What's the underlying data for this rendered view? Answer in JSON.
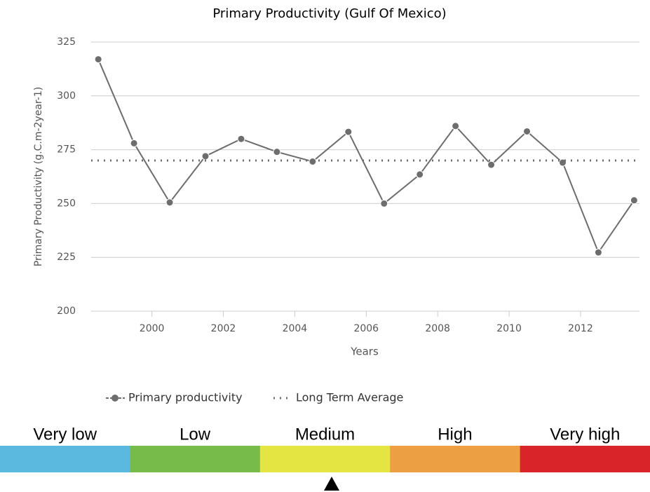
{
  "chart_data": {
    "type": "line",
    "title": "Primary Productivity (Gulf Of Mexico)",
    "x_label": "Years",
    "y_label": "Primary Productivity (g.C.m-2year-1)",
    "x": [
      1998.5,
      1999.5,
      2000.5,
      2001.5,
      2002.5,
      2003.5,
      2004.5,
      2005.5,
      2006.5,
      2007.5,
      2008.5,
      2009.5,
      2010.5,
      2011.5,
      2012.5,
      2013.5
    ],
    "series": [
      {
        "name": "Primary productivity",
        "color": "#6d6d6d",
        "values": [
          317,
          278,
          250.5,
          272,
          280,
          274,
          269.5,
          283.3,
          250,
          263.5,
          286,
          268,
          283.5,
          269,
          227.3,
          251.5
        ]
      },
      {
        "name": "Long Term Average",
        "color": "#6d6d6d",
        "style": "dotted",
        "value": 270
      }
    ],
    "xlim": [
      1998.3,
      2013.65
    ],
    "xticks": [
      2000,
      2002,
      2004,
      2006,
      2008,
      2010,
      2012
    ],
    "ylim": [
      200,
      325
    ],
    "yticks": [
      200,
      225,
      250,
      275,
      300,
      325
    ],
    "grid": true
  },
  "scale": {
    "labels": [
      "Very low",
      "Low",
      "Medium",
      "High",
      "Very high"
    ],
    "colors": [
      "#5bb8de",
      "#77bb4a",
      "#e4e442",
      "#eda043",
      "#d9252a"
    ]
  }
}
